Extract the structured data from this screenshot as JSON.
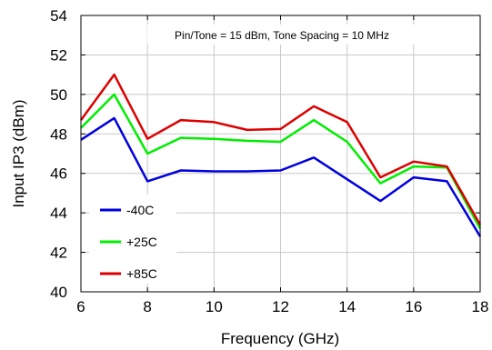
{
  "chart_data": {
    "type": "line",
    "title": "",
    "annotation": "Pin/Tone = 15 dBm, Tone Spacing = 10 MHz",
    "xlabel": "Frequency (GHz)",
    "ylabel": "Input IP3 (dBm)",
    "xlim": [
      6,
      18
    ],
    "ylim": [
      40,
      54
    ],
    "xticks": [
      6,
      8,
      10,
      12,
      14,
      16,
      18
    ],
    "yticks": [
      40,
      42,
      44,
      46,
      48,
      50,
      52,
      54
    ],
    "grid": true,
    "legend_position": "bottom-left",
    "x": [
      6,
      7,
      8,
      9,
      10,
      11,
      12,
      13,
      14,
      15,
      16,
      17,
      18
    ],
    "series": [
      {
        "name": "-40C",
        "color": "#0000dd",
        "values": [
          47.7,
          48.8,
          45.6,
          46.15,
          46.1,
          46.1,
          46.15,
          46.8,
          45.7,
          44.6,
          45.8,
          45.6,
          42.8
        ]
      },
      {
        "name": "+25C",
        "color": "#00ee00",
        "values": [
          48.3,
          50.0,
          47.0,
          47.8,
          47.75,
          47.65,
          47.6,
          48.7,
          47.6,
          45.5,
          46.35,
          46.3,
          43.2
        ]
      },
      {
        "name": "+85C",
        "color": "#dd0000",
        "values": [
          48.7,
          51.0,
          47.75,
          48.7,
          48.6,
          48.2,
          48.25,
          49.4,
          48.6,
          45.8,
          46.6,
          46.35,
          43.4
        ]
      }
    ]
  }
}
